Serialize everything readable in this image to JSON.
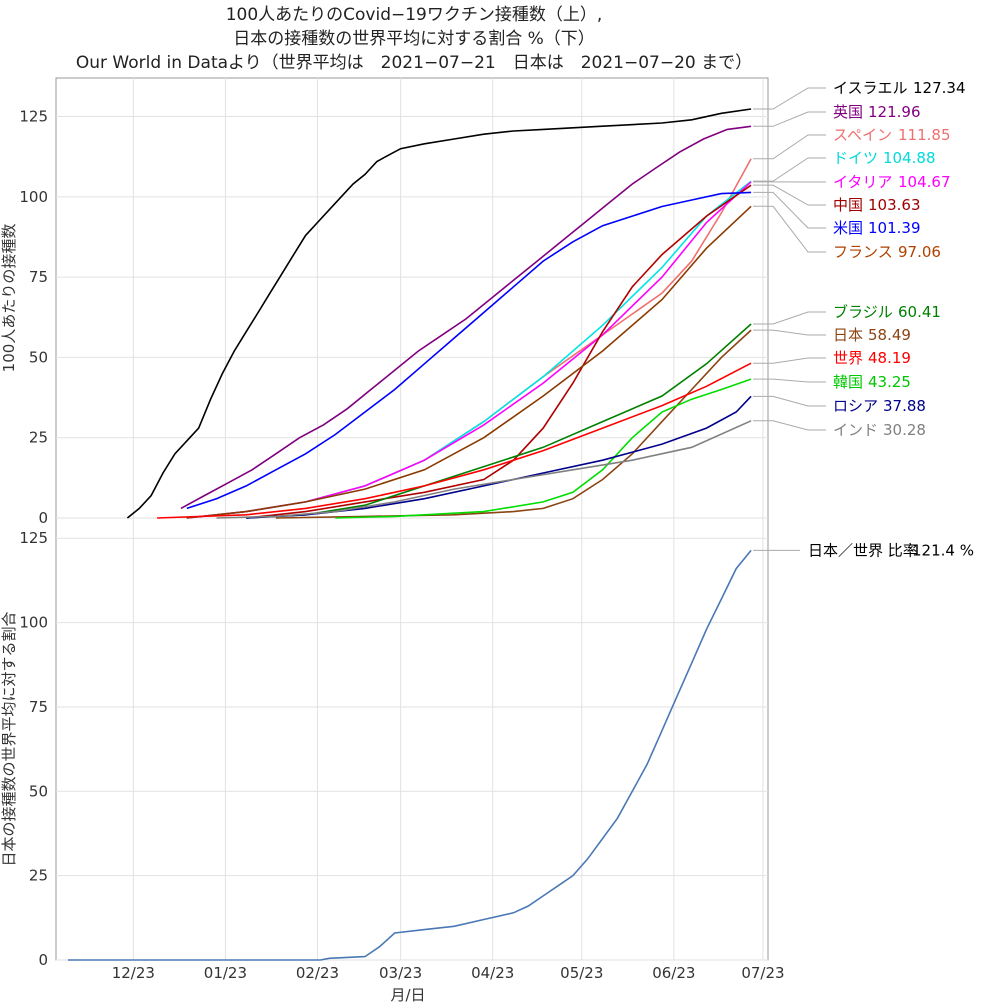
{
  "chart_data": [
    {
      "type": "line",
      "title": [
        "100人あたりのCovid−19ワクチン接種数（上）,",
        "日本の接種数の世界平均に対する割合 %（下）",
        "Our World in Dataより（世界平均は　2021−07−21　日本は　2021−07−20 まで）"
      ],
      "ylabel": "100人あたりの接種数",
      "ylim": [
        0,
        137
      ],
      "yticks": [
        "0",
        "25",
        "50",
        "75",
        "100",
        "125"
      ],
      "xlabel": "",
      "x_start": "2020-12-01",
      "x_end": "2021-07-21",
      "grid": true,
      "series": [
        {
          "name": "イスラエル",
          "value_label": "127.34",
          "color": "#000000",
          "name_color": "#000000",
          "points": [
            [
              20,
              0
            ],
            [
              24,
              3
            ],
            [
              28,
              7
            ],
            [
              32,
              14
            ],
            [
              36,
              20
            ],
            [
              40,
              24
            ],
            [
              44,
              28
            ],
            [
              48,
              37
            ],
            [
              52,
              45
            ],
            [
              56,
              52
            ],
            [
              60,
              58
            ],
            [
              64,
              64
            ],
            [
              68,
              70
            ],
            [
              72,
              76
            ],
            [
              76,
              82
            ],
            [
              80,
              88
            ],
            [
              84,
              92
            ],
            [
              88,
              96
            ],
            [
              92,
              100
            ],
            [
              96,
              104
            ],
            [
              100,
              107
            ],
            [
              104,
              111
            ],
            [
              108,
              113
            ],
            [
              112,
              115
            ],
            [
              120,
              116.5
            ],
            [
              130,
              118
            ],
            [
              140,
              119.5
            ],
            [
              150,
              120.5
            ],
            [
              160,
              121
            ],
            [
              180,
              122
            ],
            [
              200,
              123
            ],
            [
              210,
              124
            ],
            [
              220,
              126
            ],
            [
              230,
              127.34
            ]
          ]
        },
        {
          "name": "英国",
          "value_label": "121.96",
          "color": "#800080",
          "name_color": "#800080",
          "points": [
            [
              38,
              3
            ],
            [
              46,
              7
            ],
            [
              54,
              11
            ],
            [
              62,
              15
            ],
            [
              70,
              20
            ],
            [
              78,
              25
            ],
            [
              86,
              29
            ],
            [
              94,
              34
            ],
            [
              102,
              40
            ],
            [
              110,
              46
            ],
            [
              118,
              52
            ],
            [
              126,
              57
            ],
            [
              134,
              62
            ],
            [
              142,
              68
            ],
            [
              150,
              74
            ],
            [
              158,
              80
            ],
            [
              166,
              86
            ],
            [
              174,
              92
            ],
            [
              182,
              98
            ],
            [
              190,
              104
            ],
            [
              198,
              109
            ],
            [
              206,
              114
            ],
            [
              214,
              118
            ],
            [
              222,
              121
            ],
            [
              230,
              121.96
            ]
          ]
        },
        {
          "name": "スペイン",
          "value_label": "111.85",
          "color": "#f07070",
          "name_color": "#f07070",
          "points": [
            [
              40,
              0
            ],
            [
              60,
              2
            ],
            [
              80,
              5
            ],
            [
              100,
              10
            ],
            [
              120,
              18
            ],
            [
              140,
              30
            ],
            [
              160,
              44
            ],
            [
              180,
              57
            ],
            [
              200,
              70
            ],
            [
              210,
              80
            ],
            [
              220,
              95
            ],
            [
              230,
              111.85
            ]
          ]
        },
        {
          "name": "ドイツ",
          "value_label": "104.88",
          "color": "#00e5e5",
          "name_color": "#00dada",
          "points": [
            [
              40,
              0
            ],
            [
              60,
              2
            ],
            [
              80,
              5
            ],
            [
              100,
              10
            ],
            [
              120,
              18
            ],
            [
              140,
              30
            ],
            [
              160,
              44
            ],
            [
              180,
              60
            ],
            [
              200,
              78
            ],
            [
              215,
              94
            ],
            [
              230,
              104.88
            ]
          ]
        },
        {
          "name": "イタリア",
          "value_label": "104.67",
          "color": "#ff00ff",
          "name_color": "#ff00ff",
          "points": [
            [
              40,
              0
            ],
            [
              60,
              2
            ],
            [
              80,
              5
            ],
            [
              100,
              10
            ],
            [
              120,
              18
            ],
            [
              140,
              29
            ],
            [
              160,
              42
            ],
            [
              180,
              57
            ],
            [
              200,
              75
            ],
            [
              215,
              92
            ],
            [
              230,
              104.67
            ]
          ]
        },
        {
          "name": "中国",
          "value_label": "103.63",
          "color": "#b00000",
          "name_color": "#a00000",
          "points": [
            [
              60,
              0
            ],
            [
              80,
              2
            ],
            [
              100,
              5
            ],
            [
              120,
              8
            ],
            [
              140,
              12
            ],
            [
              150,
              18
            ],
            [
              160,
              28
            ],
            [
              170,
              42
            ],
            [
              180,
              58
            ],
            [
              190,
              72
            ],
            [
              200,
              82
            ],
            [
              215,
              94
            ],
            [
              230,
              103.63
            ]
          ]
        },
        {
          "name": "米国",
          "value_label": "101.39",
          "color": "#0000ff",
          "name_color": "#0000ff",
          "points": [
            [
              40,
              3
            ],
            [
              50,
              6
            ],
            [
              60,
              10
            ],
            [
              70,
              15
            ],
            [
              80,
              20
            ],
            [
              90,
              26
            ],
            [
              100,
              33
            ],
            [
              110,
              40
            ],
            [
              120,
              48
            ],
            [
              130,
              56
            ],
            [
              140,
              64
            ],
            [
              150,
              72
            ],
            [
              160,
              80
            ],
            [
              170,
              86
            ],
            [
              180,
              91
            ],
            [
              190,
              94
            ],
            [
              200,
              97
            ],
            [
              210,
              99
            ],
            [
              220,
              101
            ],
            [
              230,
              101.39
            ]
          ]
        },
        {
          "name": "フランス",
          "value_label": "97.06",
          "color": "#8b3a00",
          "name_color": "#b04000",
          "points": [
            [
              40,
              0
            ],
            [
              60,
              2
            ],
            [
              80,
              5
            ],
            [
              100,
              9
            ],
            [
              120,
              15
            ],
            [
              140,
              25
            ],
            [
              160,
              38
            ],
            [
              180,
              52
            ],
            [
              200,
              68
            ],
            [
              215,
              84
            ],
            [
              230,
              97.06
            ]
          ]
        },
        {
          "name": "ブラジル",
          "value_label": "60.41",
          "color": "#008000",
          "name_color": "#008000",
          "points": [
            [
              60,
              0
            ],
            [
              80,
              1
            ],
            [
              100,
              4
            ],
            [
              120,
              10
            ],
            [
              140,
              16
            ],
            [
              160,
              22
            ],
            [
              180,
              30
            ],
            [
              200,
              38
            ],
            [
              215,
              48
            ],
            [
              230,
              60.41
            ]
          ]
        },
        {
          "name": "日本",
          "value_label": "58.49",
          "color": "#8b4513",
          "name_color": "#8b4513",
          "points": [
            [
              70,
              0
            ],
            [
              100,
              0.5
            ],
            [
              130,
              1
            ],
            [
              150,
              2
            ],
            [
              160,
              3
            ],
            [
              170,
              6
            ],
            [
              180,
              12
            ],
            [
              190,
              20
            ],
            [
              200,
              30
            ],
            [
              210,
              40
            ],
            [
              220,
              50
            ],
            [
              230,
              58.49
            ]
          ]
        },
        {
          "name": "世界",
          "value_label": "48.19",
          "color": "#ff0000",
          "name_color": "#ff0000",
          "points": [
            [
              30,
              0
            ],
            [
              60,
              1
            ],
            [
              80,
              3
            ],
            [
              100,
              6
            ],
            [
              120,
              10
            ],
            [
              140,
              15
            ],
            [
              160,
              21
            ],
            [
              180,
              28
            ],
            [
              200,
              35
            ],
            [
              215,
              41
            ],
            [
              230,
              48.19
            ]
          ]
        },
        {
          "name": "韓国",
          "value_label": "43.25",
          "color": "#00dd00",
          "name_color": "#00c800",
          "points": [
            [
              90,
              0
            ],
            [
              110,
              0.5
            ],
            [
              140,
              2
            ],
            [
              160,
              5
            ],
            [
              170,
              8
            ],
            [
              180,
              15
            ],
            [
              190,
              25
            ],
            [
              200,
              33
            ],
            [
              210,
              37
            ],
            [
              220,
              40
            ],
            [
              230,
              43.25
            ]
          ]
        },
        {
          "name": "ロシア",
          "value_label": "37.88",
          "color": "#00008b",
          "name_color": "#00008b",
          "points": [
            [
              60,
              0
            ],
            [
              80,
              1
            ],
            [
              100,
              3
            ],
            [
              120,
              6
            ],
            [
              140,
              10
            ],
            [
              160,
              14
            ],
            [
              180,
              18
            ],
            [
              200,
              23
            ],
            [
              215,
              28
            ],
            [
              225,
              33
            ],
            [
              230,
              37.88
            ]
          ]
        },
        {
          "name": "インド",
          "value_label": "30.28",
          "color": "#808080",
          "name_color": "#808080",
          "points": [
            [
              50,
              0
            ],
            [
              70,
              0.5
            ],
            [
              90,
              2
            ],
            [
              110,
              5
            ],
            [
              130,
              9
            ],
            [
              150,
              12
            ],
            [
              170,
              15
            ],
            [
              190,
              18
            ],
            [
              210,
              22
            ],
            [
              230,
              30.28
            ]
          ]
        }
      ]
    },
    {
      "type": "line",
      "ylabel": "日本の接種数の世界平均に対する割合",
      "xlabel": "月/日",
      "ylim": [
        0,
        131
      ],
      "yticks": [
        "0",
        "25",
        "50",
        "75",
        "100",
        "125"
      ],
      "xticks": [
        "12/23",
        "01/23",
        "02/23",
        "03/23",
        "04/23",
        "05/23",
        "06/23",
        "07/23"
      ],
      "grid": true,
      "series": [
        {
          "name": "日本／世界 比率",
          "value_label": "121.4 %",
          "color": "#4a78b5",
          "name_color": "#000000",
          "points": [
            [
              0,
              0
            ],
            [
              80,
              0
            ],
            [
              85,
              0
            ],
            [
              88,
              0.5
            ],
            [
              100,
              1
            ],
            [
              105,
              4
            ],
            [
              110,
              8
            ],
            [
              120,
              9
            ],
            [
              130,
              10
            ],
            [
              140,
              12
            ],
            [
              150,
              14
            ],
            [
              155,
              16
            ],
            [
              160,
              19
            ],
            [
              165,
              22
            ],
            [
              170,
              25
            ],
            [
              175,
              30
            ],
            [
              180,
              36
            ],
            [
              185,
              42
            ],
            [
              190,
              50
            ],
            [
              195,
              58
            ],
            [
              200,
              68
            ],
            [
              205,
              78
            ],
            [
              210,
              88
            ],
            [
              215,
              98
            ],
            [
              220,
              107
            ],
            [
              225,
              116
            ],
            [
              230,
              121.4
            ]
          ]
        }
      ]
    }
  ]
}
